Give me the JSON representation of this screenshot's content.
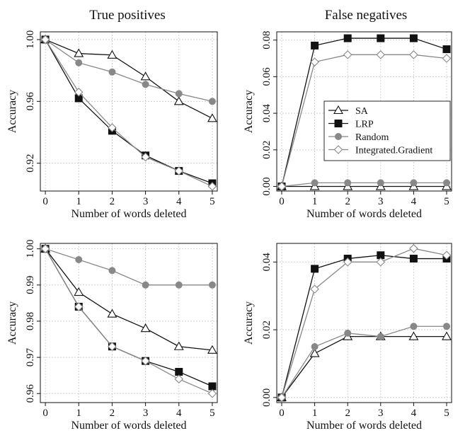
{
  "column_titles": [
    "True positives",
    "False negatives"
  ],
  "chart_data": [
    {
      "type": "line",
      "x": [
        0,
        1,
        2,
        3,
        4,
        5
      ],
      "xlabel": "Number of words deleted",
      "ylabel": "Accuracy",
      "xlim": [
        -0.15,
        5.15
      ],
      "ylim": [
        0.902,
        1.005
      ],
      "yticks": [
        "0.92",
        "0.96",
        "1.00"
      ],
      "grid": true,
      "series": [
        {
          "name": "SA",
          "marker": "triangle",
          "color": "#111111",
          "values": [
            1.0,
            0.991,
            0.99,
            0.976,
            0.96,
            0.949
          ]
        },
        {
          "name": "LRP",
          "marker": "square",
          "color": "#111111",
          "values": [
            1.0,
            0.962,
            0.941,
            0.925,
            0.915,
            0.907
          ]
        },
        {
          "name": "Random",
          "marker": "circle",
          "color": "#888888",
          "values": [
            1.0,
            0.985,
            0.979,
            0.971,
            0.965,
            0.96
          ]
        },
        {
          "name": "Integrated.Gradient",
          "marker": "diamond",
          "color": "#888888",
          "values": [
            1.0,
            0.966,
            0.943,
            0.924,
            0.915,
            0.905
          ]
        }
      ]
    },
    {
      "type": "line",
      "x": [
        0,
        1,
        2,
        3,
        4,
        5
      ],
      "xlabel": "Number of words deleted",
      "ylabel": "Accuracy",
      "xlim": [
        -0.15,
        5.15
      ],
      "ylim": [
        -0.0025,
        0.0845
      ],
      "yticks": [
        "0.00",
        "0.02",
        "0.04",
        "0.06",
        "0.08"
      ],
      "grid": true,
      "legend": {
        "position": "right",
        "entries": [
          "SA",
          "LRP",
          "Random",
          "Integrated.Gradient"
        ]
      },
      "series": [
        {
          "name": "SA",
          "marker": "triangle",
          "color": "#111111",
          "values": [
            0.0,
            0.0,
            0.0,
            0.0,
            0.0,
            0.0
          ]
        },
        {
          "name": "LRP",
          "marker": "square",
          "color": "#111111",
          "values": [
            0.0,
            0.077,
            0.081,
            0.081,
            0.081,
            0.075
          ]
        },
        {
          "name": "Random",
          "marker": "circle",
          "color": "#888888",
          "values": [
            0.0,
            0.002,
            0.002,
            0.002,
            0.002,
            0.002
          ]
        },
        {
          "name": "Integrated.Gradient",
          "marker": "diamond",
          "color": "#888888",
          "values": [
            0.0,
            0.068,
            0.072,
            0.072,
            0.072,
            0.07
          ]
        }
      ]
    },
    {
      "type": "line",
      "x": [
        0,
        1,
        2,
        3,
        4,
        5
      ],
      "xlabel": "Number of words deleted",
      "ylabel": "Accuracy",
      "xlim": [
        -0.15,
        5.15
      ],
      "ylim": [
        0.9575,
        1.0015
      ],
      "yticks": [
        "0.96",
        "0.97",
        "0.98",
        "0.99",
        "1.00"
      ],
      "grid": true,
      "series": [
        {
          "name": "SA",
          "marker": "triangle",
          "color": "#111111",
          "values": [
            1.0,
            0.988,
            0.982,
            0.978,
            0.973,
            0.972
          ]
        },
        {
          "name": "LRP",
          "marker": "square",
          "color": "#111111",
          "values": [
            1.0,
            0.984,
            0.973,
            0.969,
            0.966,
            0.962
          ]
        },
        {
          "name": "Random",
          "marker": "circle",
          "color": "#888888",
          "values": [
            1.0,
            0.997,
            0.994,
            0.99,
            0.99,
            0.99
          ]
        },
        {
          "name": "Integrated.Gradient",
          "marker": "diamond",
          "color": "#888888",
          "values": [
            1.0,
            0.984,
            0.973,
            0.969,
            0.964,
            0.96
          ]
        }
      ]
    },
    {
      "type": "line",
      "x": [
        0,
        1,
        2,
        3,
        4,
        5
      ],
      "xlabel": "Number of words deleted",
      "ylabel": "Accuracy",
      "xlim": [
        -0.15,
        5.15
      ],
      "ylim": [
        -0.0015,
        0.0455
      ],
      "yticks": [
        "0.00",
        "0.02",
        "0.04"
      ],
      "grid": true,
      "series": [
        {
          "name": "SA",
          "marker": "triangle",
          "color": "#111111",
          "values": [
            0.0,
            0.013,
            0.018,
            0.018,
            0.018,
            0.018
          ]
        },
        {
          "name": "LRP",
          "marker": "square",
          "color": "#111111",
          "values": [
            0.0,
            0.038,
            0.041,
            0.042,
            0.041,
            0.041
          ]
        },
        {
          "name": "Random",
          "marker": "circle",
          "color": "#888888",
          "values": [
            0.0,
            0.015,
            0.019,
            0.018,
            0.021,
            0.021
          ]
        },
        {
          "name": "Integrated.Gradient",
          "marker": "diamond",
          "color": "#888888",
          "values": [
            0.0,
            0.032,
            0.04,
            0.04,
            0.044,
            0.042
          ]
        }
      ]
    }
  ]
}
